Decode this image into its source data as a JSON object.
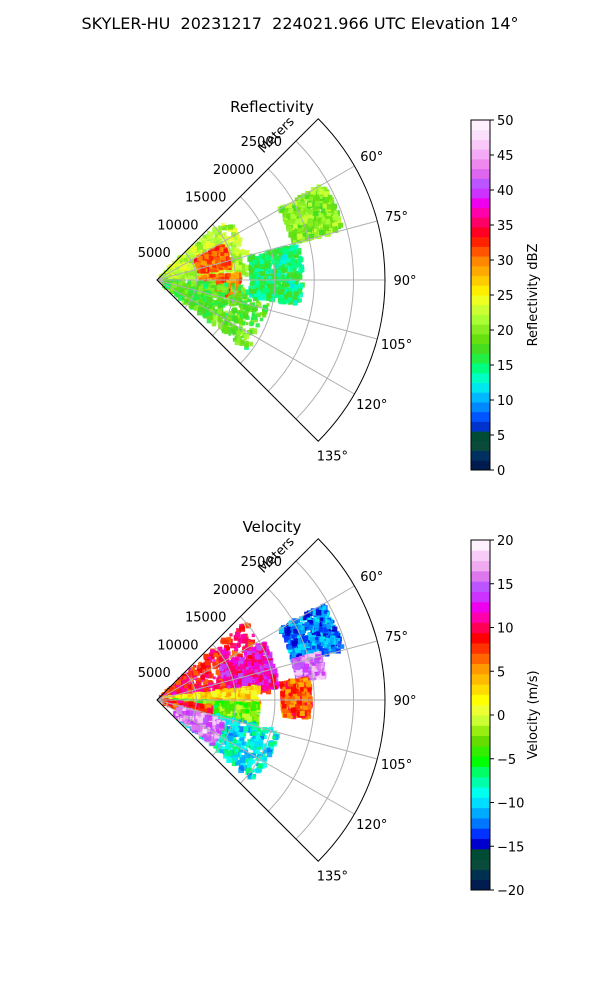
{
  "page": {
    "title": "SKYLER-HU  20231217  224021.966 UTC Elevation 14°"
  },
  "chart_data": [
    {
      "type": "heatmap",
      "subtype": "polar-sector radar PPI",
      "title": "Reflectivity",
      "radial_label": "Meters",
      "radial_ticks": [
        5000,
        10000,
        15000,
        20000,
        25000
      ],
      "radial_tick_labels": [
        "5000",
        "10000",
        "15000",
        "20000",
        "25000"
      ],
      "r_max": 29000,
      "theta_range_deg": [
        45,
        135
      ],
      "theta_ticks": [
        60,
        75,
        90,
        105,
        120,
        135
      ],
      "theta_tick_labels": [
        "60°",
        "75°",
        "90°",
        "105°",
        "120°",
        "135°"
      ],
      "grid": true,
      "colorbar": {
        "label": "Reflectivity dBZ",
        "range": [
          0,
          50
        ],
        "ticks": [
          0,
          5,
          10,
          15,
          20,
          25,
          30,
          35,
          40,
          45,
          50
        ],
        "tick_labels": [
          "0",
          "5",
          "10",
          "15",
          "20",
          "25",
          "30",
          "35",
          "40",
          "45",
          "50"
        ],
        "colors": [
          "#001b4d",
          "#003060",
          "#0a4a3a",
          "#004b33",
          "#0033cc",
          "#0055ff",
          "#0088ff",
          "#00b8ff",
          "#00e8ee",
          "#00ffc0",
          "#00ff80",
          "#22ee44",
          "#44dd22",
          "#66e011",
          "#88ee22",
          "#aaff33",
          "#ccff33",
          "#eeff22",
          "#ffee00",
          "#ffcc00",
          "#ffaa00",
          "#ff8800",
          "#ff5500",
          "#ff2200",
          "#ff0022",
          "#ff0066",
          "#ff00aa",
          "#ee00ee",
          "#cc33ff",
          "#bb55ff",
          "#dd66ee",
          "#ee88ee",
          "#f4aaf4",
          "#f8c8f8",
          "#fbe0fb",
          "#fff0ff"
        ]
      },
      "echo_regions": [
        {
          "theta": [
            47,
            88
          ],
          "r": [
            500,
            12000
          ],
          "value": 22
        },
        {
          "theta": [
            62,
            80
          ],
          "r": [
            5500,
            9500
          ],
          "value": 31
        },
        {
          "theta": [
            86,
            102
          ],
          "r": [
            5500,
            10500
          ],
          "value": 30
        },
        {
          "theta": [
            93,
            128
          ],
          "r": [
            1000,
            14500
          ],
          "value": 18
        },
        {
          "theta": [
            60,
            75
          ],
          "r": [
            18000,
            24500
          ],
          "value": 20
        },
        {
          "theta": [
            76,
            100
          ],
          "r": [
            12000,
            18500
          ],
          "value": 15
        }
      ]
    },
    {
      "type": "heatmap",
      "subtype": "polar-sector radar PPI",
      "title": "Velocity",
      "radial_label": "Meters",
      "radial_ticks": [
        5000,
        10000,
        15000,
        20000,
        25000
      ],
      "radial_tick_labels": [
        "5000",
        "10000",
        "15000",
        "20000",
        "25000"
      ],
      "r_max": 29000,
      "theta_range_deg": [
        45,
        135
      ],
      "theta_ticks": [
        60,
        75,
        90,
        105,
        120,
        135
      ],
      "theta_tick_labels": [
        "60°",
        "75°",
        "90°",
        "105°",
        "120°",
        "135°"
      ],
      "grid": true,
      "colorbar": {
        "label": "Velocity (m/s)",
        "range": [
          -20,
          20
        ],
        "ticks": [
          -20,
          -15,
          -10,
          -5,
          0,
          5,
          10,
          15,
          20
        ],
        "tick_labels": [
          "−20",
          "−15",
          "−10",
          "−5",
          "0",
          "5",
          "10",
          "15",
          "20"
        ],
        "colors": [
          "#001b4d",
          "#003050",
          "#0a4a3a",
          "#004b33",
          "#0000cc",
          "#0033ff",
          "#0077ff",
          "#00aaff",
          "#00ddff",
          "#00ffee",
          "#00ffaa",
          "#00ff66",
          "#00ff00",
          "#33ee00",
          "#66dd00",
          "#99ee11",
          "#ccff33",
          "#eeff33",
          "#ffff00",
          "#ffdd00",
          "#ffbb00",
          "#ff9900",
          "#ff6600",
          "#ff3300",
          "#ff0000",
          "#ff0055",
          "#ff00aa",
          "#ee00ee",
          "#cc33ff",
          "#bb55ff",
          "#dd77ee",
          "#f0aaf0",
          "#f8ccf8",
          "#fff0ff"
        ]
      },
      "echo_regions": [
        {
          "theta": [
            48,
            86
          ],
          "r": [
            500,
            15000
          ],
          "value": 9
        },
        {
          "theta": [
            62,
            84
          ],
          "r": [
            9000,
            15500
          ],
          "value": 12
        },
        {
          "theta": [
            82,
            95
          ],
          "r": [
            1000,
            13000
          ],
          "value": 3
        },
        {
          "theta": [
            92,
            104
          ],
          "r": [
            1000,
            13000
          ],
          "value": -3
        },
        {
          "theta": [
            104,
            130
          ],
          "r": [
            3000,
            16000
          ],
          "value": -9
        },
        {
          "theta": [
            97,
            110
          ],
          "r": [
            1000,
            7000
          ],
          "value": 8
        },
        {
          "theta": [
            108,
            128
          ],
          "r": [
            3000,
            9000
          ],
          "value": 16
        },
        {
          "theta": [
            60,
            75
          ],
          "r": [
            18000,
            24500
          ],
          "value": -12
        },
        {
          "theta": [
            74,
            82
          ],
          "r": [
            18000,
            21500
          ],
          "value": 16
        },
        {
          "theta": [
            82,
            97
          ],
          "r": [
            16000,
            19500
          ],
          "value": 7
        }
      ]
    }
  ]
}
